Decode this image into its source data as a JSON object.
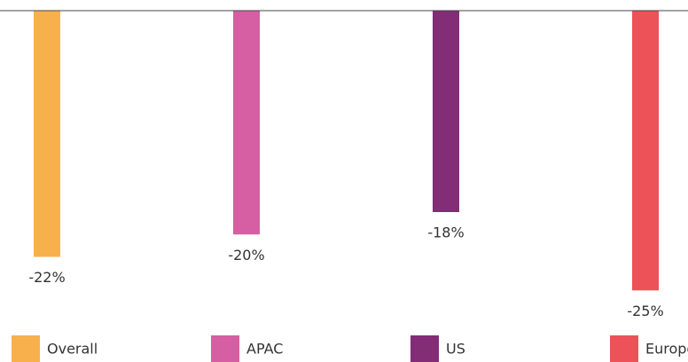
{
  "chart_data": {
    "type": "bar",
    "categories": [
      "Overall",
      "APAC",
      "US",
      "Europe"
    ],
    "values": [
      -22,
      -20,
      -18,
      -25
    ],
    "value_labels": [
      "-22%",
      "-20%",
      "-18%",
      "-25%"
    ],
    "colors": [
      "#f8b04c",
      "#d65ea3",
      "#822d76",
      "#ec5257"
    ],
    "ylim": [
      -31,
      0
    ],
    "legend": "bottom"
  }
}
